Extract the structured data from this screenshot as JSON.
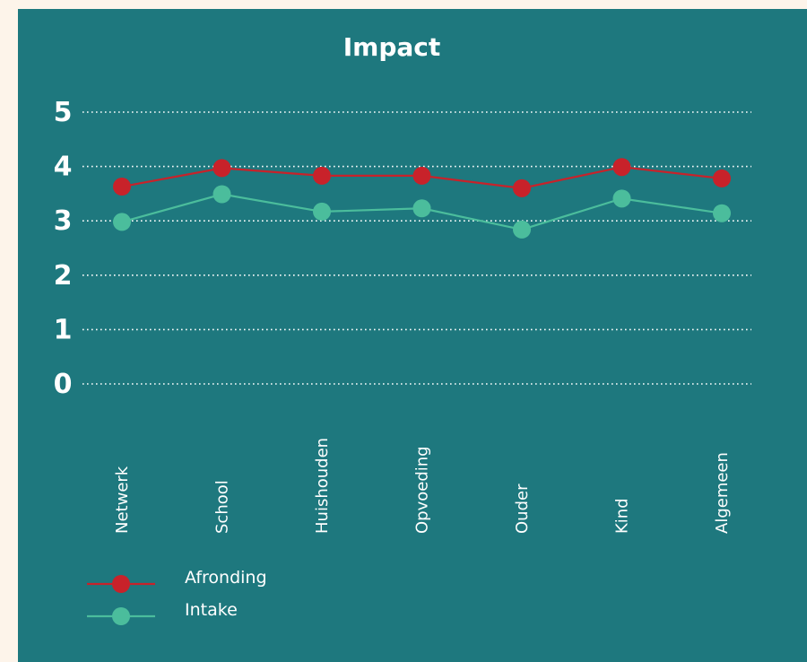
{
  "chart_data": {
    "type": "line",
    "title": "Impact",
    "categories": [
      "Netwerk",
      "School",
      "Huishouden",
      "Opvoeding",
      "Ouder",
      "Kind",
      "Algemeen"
    ],
    "yticks": [
      "0",
      "1",
      "2",
      "3",
      "4",
      "5"
    ],
    "ylim": [
      0,
      5
    ],
    "grid": true,
    "legend_position": "bottom-left",
    "series": [
      {
        "name": "Afronding",
        "color": "#c8222a",
        "values": [
          3.63,
          3.97,
          3.83,
          3.83,
          3.6,
          3.99,
          3.78
        ]
      },
      {
        "name": "Intake",
        "color": "#4bbd9c",
        "values": [
          2.98,
          3.49,
          3.17,
          3.23,
          2.84,
          3.41,
          3.14
        ]
      }
    ]
  }
}
